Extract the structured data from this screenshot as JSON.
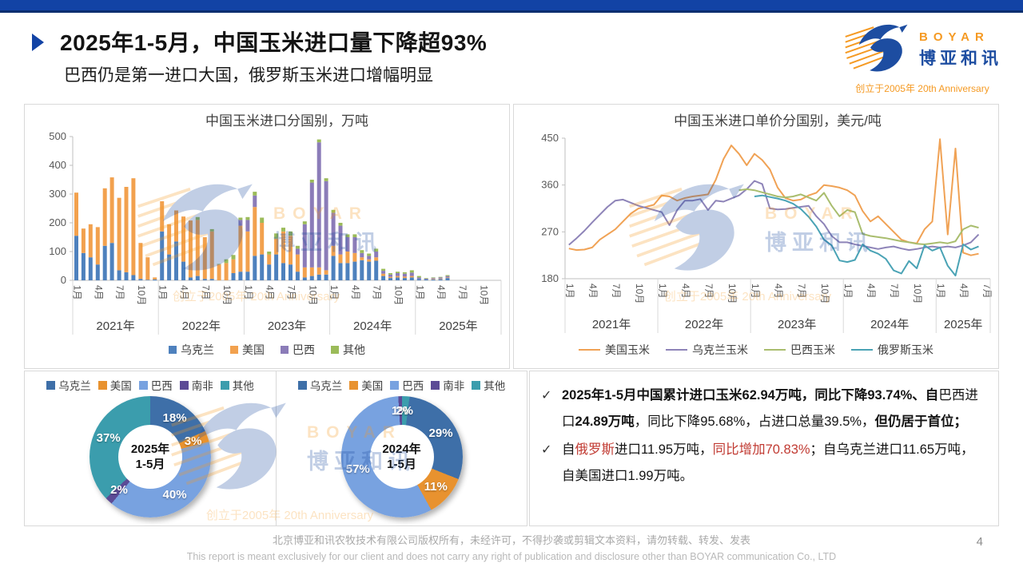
{
  "header": {
    "title": "2025年1-5月，中国玉米进口量下降超93%",
    "subtitle": "巴西仍是第一进口大国，俄罗斯玉米进口增幅明显"
  },
  "logo": {
    "brand": "BOYAR",
    "brand_cn": "博亚和讯",
    "anniversary": "创立于2005年 20th Anniversary",
    "blue": "#1d4da1",
    "orange": "#f59a23"
  },
  "chart_data": [
    {
      "id": "imports-by-country",
      "type": "bar",
      "stacked": true,
      "title": "中国玉米进口分国别，万吨",
      "ylim": [
        0,
        500
      ],
      "yticks": [
        0,
        100,
        200,
        300,
        400,
        500
      ],
      "years": [
        "2021年",
        "2022年",
        "2023年",
        "2024年",
        "2025年"
      ],
      "month_ticks": [
        "1月",
        "4月",
        "7月",
        "10月"
      ],
      "month_tick_offsets": [
        0,
        3,
        6,
        9
      ],
      "axis_months": 60,
      "start_month": "2021-01",
      "end_month": "2025-05",
      "series": [
        {
          "name": "乌克兰",
          "color": "#4e81bd",
          "values": [
            155,
            95,
            80,
            55,
            120,
            130,
            35,
            28,
            18,
            5,
            2,
            3,
            170,
            90,
            135,
            65,
            10,
            15,
            5,
            5,
            0,
            0,
            25,
            30,
            30,
            85,
            90,
            55,
            90,
            60,
            55,
            30,
            10,
            15,
            20,
            20,
            85,
            60,
            60,
            65,
            70,
            65,
            68,
            15,
            8,
            10,
            8,
            10,
            5,
            3,
            3,
            4,
            8
          ]
        },
        {
          "name": "美国",
          "color": "#f2a14e",
          "values": [
            150,
            85,
            115,
            130,
            200,
            228,
            252,
            297,
            337,
            125,
            78,
            7,
            105,
            105,
            108,
            157,
            198,
            195,
            145,
            165,
            55,
            60,
            48,
            160,
            140,
            170,
            110,
            35,
            55,
            110,
            100,
            60,
            35,
            30,
            25,
            15,
            35,
            30,
            40,
            30,
            10,
            8,
            12,
            8,
            4,
            5,
            5,
            5,
            0,
            0,
            2,
            2,
            2
          ]
        },
        {
          "name": "巴西",
          "color": "#8b7cb8",
          "values": [
            0,
            0,
            0,
            0,
            0,
            0,
            0,
            0,
            0,
            0,
            0,
            0,
            0,
            0,
            0,
            0,
            0,
            0,
            0,
            0,
            0,
            0,
            0,
            20,
            40,
            40,
            0,
            0,
            0,
            0,
            0,
            20,
            150,
            295,
            435,
            310,
            115,
            100,
            50,
            55,
            15,
            12,
            20,
            10,
            8,
            10,
            10,
            12,
            5,
            3,
            3,
            4,
            5
          ]
        },
        {
          "name": "其他",
          "color": "#9bbb59",
          "values": [
            0,
            0,
            0,
            0,
            0,
            0,
            0,
            0,
            0,
            0,
            0,
            0,
            0,
            0,
            0,
            0,
            0,
            10,
            0,
            8,
            2,
            13,
            15,
            8,
            10,
            13,
            18,
            10,
            18,
            13,
            15,
            10,
            10,
            10,
            10,
            10,
            10,
            10,
            10,
            10,
            10,
            8,
            10,
            7,
            5,
            5,
            5,
            8,
            5,
            2,
            2,
            2,
            3
          ]
        }
      ]
    },
    {
      "id": "unit-price-by-country",
      "type": "line",
      "title": "中国玉米进口单价分国别，美元/吨",
      "ylim": [
        180,
        450
      ],
      "yticks": [
        180,
        270,
        360,
        450
      ],
      "years": [
        "2021年",
        "2022年",
        "2023年",
        "2024年",
        "2025年"
      ],
      "month_ticks": [
        "1月",
        "4月",
        "7月",
        "10月"
      ],
      "month_tick_offsets": [
        0,
        3,
        6,
        9
      ],
      "axis_months": 55,
      "start_month": "2021-01",
      "end_month": "2025-06",
      "series": [
        {
          "name": "美国玉米",
          "color": "#f0a255",
          "values": [
            238,
            235,
            236,
            240,
            255,
            265,
            275,
            290,
            305,
            315,
            318,
            322,
            340,
            338,
            330,
            335,
            338,
            340,
            342,
            370,
            410,
            436,
            420,
            398,
            420,
            408,
            390,
            355,
            335,
            330,
            332,
            340,
            345,
            360,
            358,
            355,
            350,
            340,
            310,
            290,
            300,
            285,
            270,
            255,
            250,
            248,
            275,
            290,
            448,
            265,
            430,
            230,
            225,
            228
          ]
        },
        {
          "name": "乌克兰玉米",
          "color": "#8e84b8",
          "values": [
            245,
            258,
            272,
            288,
            303,
            318,
            330,
            332,
            326,
            320,
            316,
            312,
            308,
            283,
            312,
            330,
            330,
            333,
            312,
            330,
            328,
            334,
            340,
            352,
            368,
            362,
            315,
            313,
            314,
            316,
            318,
            320,
            300,
            285,
            262,
            250,
            250,
            246,
            243,
            240,
            237,
            240,
            242,
            238,
            235,
            237,
            240,
            242,
            240,
            242,
            240,
            244,
            250,
            265
          ]
        },
        {
          "name": "巴西玉米",
          "color": "#a9bd6e",
          "values": [
            null,
            null,
            null,
            null,
            null,
            null,
            null,
            null,
            null,
            null,
            null,
            null,
            null,
            null,
            null,
            null,
            null,
            null,
            null,
            null,
            null,
            null,
            350,
            352,
            350,
            346,
            342,
            338,
            336,
            338,
            342,
            336,
            330,
            345,
            320,
            300,
            312,
            308,
            266,
            262,
            260,
            258,
            255,
            252,
            250,
            247,
            246,
            248,
            250,
            248,
            252,
            275,
            282,
            278
          ]
        },
        {
          "name": "俄罗斯玉米",
          "color": "#4aa3b5",
          "values": [
            null,
            null,
            null,
            null,
            null,
            null,
            null,
            null,
            null,
            null,
            null,
            null,
            null,
            null,
            null,
            null,
            null,
            null,
            null,
            null,
            null,
            null,
            null,
            null,
            338,
            340,
            337,
            334,
            330,
            324,
            314,
            299,
            280,
            255,
            244,
            215,
            212,
            216,
            246,
            234,
            228,
            218,
            196,
            190,
            214,
            200,
            244,
            234,
            240,
            205,
            186,
            246,
            236,
            242
          ]
        }
      ]
    },
    {
      "id": "share-2025",
      "type": "pie",
      "donut": true,
      "center_label": [
        "2025年",
        "1-5月"
      ],
      "rotate": 0,
      "slices": [
        {
          "name": "乌克兰",
          "value": 18,
          "color": "#3e6fa8"
        },
        {
          "name": "美国",
          "value": 3,
          "color": "#e8922f"
        },
        {
          "name": "巴西",
          "value": 40,
          "color": "#78a2e0"
        },
        {
          "name": "南非",
          "value": 2,
          "color": "#5c4b96"
        },
        {
          "name": "其他",
          "value": 37,
          "color": "#3b9dad"
        }
      ]
    },
    {
      "id": "share-2024",
      "type": "pie",
      "donut": true,
      "center_label": [
        "2024年",
        "1-5月"
      ],
      "rotate": 7.2,
      "slices": [
        {
          "name": "乌克兰",
          "value": 29,
          "color": "#3e6fa8"
        },
        {
          "name": "美国",
          "value": 11,
          "color": "#e8922f"
        },
        {
          "name": "巴西",
          "value": 57,
          "color": "#78a2e0"
        },
        {
          "name": "南非",
          "value": 1,
          "color": "#5c4b96"
        },
        {
          "name": "其他",
          "value": 2,
          "color": "#3b9dad"
        }
      ]
    }
  ],
  "analysis": {
    "bullets": [
      {
        "check": "✓",
        "segments": [
          {
            "text": "2025年1-5月中国累计进口玉米62.94万吨，同比下降93.74%、自",
            "style": "bold"
          },
          {
            "text": "巴西进口",
            "style": ""
          },
          {
            "text": "24.89万吨",
            "style": "bold"
          },
          {
            "text": "，同比下降95.68%，占进口总量39.5%，",
            "style": ""
          },
          {
            "text": "但仍居于首位；",
            "style": "bold"
          }
        ]
      },
      {
        "check": "✓",
        "segments": [
          {
            "text": "自",
            "style": ""
          },
          {
            "text": "俄罗斯",
            "style": "red"
          },
          {
            "text": "进口11.95万吨，",
            "style": ""
          },
          {
            "text": "同比增加70.83%",
            "style": "red"
          },
          {
            "text": "；自乌克兰进口11.65万吨，自美国进口1.99万吨。",
            "style": ""
          }
        ]
      }
    ]
  },
  "footer": {
    "line1": "北京博亚和讯农牧技术有限公司版权所有，未经许可，不得抄袭或剪辑文本资料，请勿转载、转发、发表",
    "line2": "This report is meant exclusively for our client and does not carry any right of publication and disclosure other than BOYAR communication Co., LTD",
    "page": "4"
  }
}
